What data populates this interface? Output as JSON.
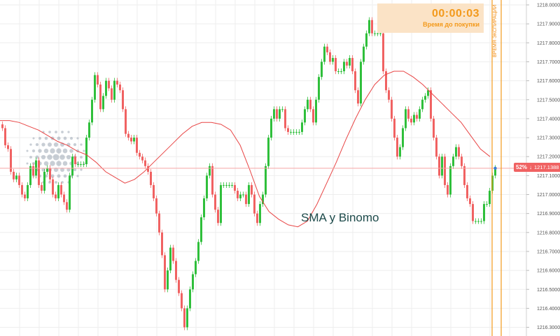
{
  "timer": {
    "value": "00:00:03",
    "label": "Время до покупки"
  },
  "expiry_label": "ВРЕМЯ ЭКСПИРАЦИИ",
  "price_badge": {
    "percent": "52%",
    "arrow": "↓",
    "price": "1217.1388"
  },
  "caption": "SMA у Binomo",
  "colors": {
    "up": "#2fbf3b",
    "down": "#f06262",
    "sma": "#e84545",
    "price_line": "#f5a5a5",
    "expiry": "#f39a1c",
    "grid": "#eeeeee"
  },
  "chart_data": {
    "type": "candlestick",
    "ylim": [
      1216.25,
      1218.02
    ],
    "y_ticks": [
      "1218.00000",
      "1217.90000",
      "1217.80000",
      "1217.70000",
      "1217.60000",
      "1217.50000",
      "1217.40000",
      "1217.30000",
      "1217.20000",
      "1217.10000",
      "1217.00000",
      "1216.90000",
      "1216.80000",
      "1216.70000",
      "1216.60000",
      "1216.50000",
      "1216.40000",
      "1216.30000"
    ],
    "current_price": 1217.1388,
    "sma_label": "SMA",
    "close": [
      1217.35,
      1217.26,
      1217.24,
      1217.12,
      1217.08,
      1217.1,
      1217.05,
      1217.0,
      1216.98,
      1217.05,
      1217.15,
      1217.1,
      1217.18,
      1217.05,
      1217.02,
      1217.12,
      1217.14,
      1217.08,
      1217.0,
      1216.98,
      1217.05,
      1217.0,
      1216.96,
      1216.92,
      1217.1,
      1217.2,
      1217.16,
      1217.16,
      1217.16,
      1217.16,
      1217.3,
      1217.38,
      1217.5,
      1217.63,
      1217.58,
      1217.45,
      1217.52,
      1217.6,
      1217.56,
      1217.5,
      1217.6,
      1217.58,
      1217.55,
      1217.45,
      1217.32,
      1217.3,
      1217.28,
      1217.3,
      1217.22,
      1217.2,
      1217.18,
      1217.15,
      1217.12,
      1217.05,
      1216.98,
      1216.9,
      1216.8,
      1216.68,
      1216.5,
      1216.6,
      1216.72,
      1216.65,
      1216.55,
      1216.48,
      1216.4,
      1216.3,
      1216.4,
      1216.5,
      1216.58,
      1216.65,
      1216.75,
      1216.88,
      1216.98,
      1217.1,
      1217.15,
      1217.0,
      1216.92,
      1216.85,
      1217.05,
      1217.05,
      1217.05,
      1217.05,
      1217.05,
      1217.02,
      1216.98,
      1217.0,
      1217.0,
      1216.95,
      1217.05,
      1217.0,
      1216.9,
      1216.85,
      1216.95,
      1217.0,
      1217.15,
      1217.3,
      1217.4,
      1217.45,
      1217.4,
      1217.45,
      1217.45,
      1217.35,
      1217.33,
      1217.33,
      1217.33,
      1217.33,
      1217.33,
      1217.38,
      1217.45,
      1217.5,
      1217.45,
      1217.38,
      1217.5,
      1217.62,
      1217.7,
      1217.78,
      1217.75,
      1217.7,
      1217.72,
      1217.65,
      1217.65,
      1217.65,
      1217.7,
      1217.68,
      1217.72,
      1217.65,
      1217.55,
      1217.48,
      1217.7,
      1217.78,
      1217.85,
      1217.92,
      1217.85,
      1217.85,
      1217.85,
      1217.85,
      1217.65,
      1217.55,
      1217.5,
      1217.4,
      1217.3,
      1217.2,
      1217.25,
      1217.35,
      1217.45,
      1217.4,
      1217.38,
      1217.42,
      1217.4,
      1217.45,
      1217.5,
      1217.52,
      1217.55,
      1217.4,
      1217.3,
      1217.2,
      1217.1,
      1217.2,
      1217.05,
      1217.0,
      1217.15,
      1217.2,
      1217.25,
      1217.2,
      1217.15,
      1217.05,
      1216.98,
      1216.95,
      1216.86,
      1216.86,
      1216.86,
      1216.86,
      1216.95,
      1216.95,
      1217.02,
      1217.1,
      1217.14
    ],
    "sma": [
      1217.39,
      1217.39,
      1217.38,
      1217.36,
      1217.34,
      1217.31,
      1217.28,
      1217.26,
      1217.23,
      1217.21,
      1217.17,
      1217.12,
      1217.09,
      1217.06,
      1217.08,
      1217.12,
      1217.17,
      1217.22,
      1217.27,
      1217.32,
      1217.36,
      1217.38,
      1217.38,
      1217.37,
      1217.34,
      1217.26,
      1217.13,
      1216.99,
      1216.91,
      1216.87,
      1216.84,
      1216.83,
      1216.86,
      1216.95,
      1217.06,
      1217.17,
      1217.29,
      1217.4,
      1217.5,
      1217.58,
      1217.63,
      1217.65,
      1217.65,
      1217.62,
      1217.58,
      1217.53,
      1217.48,
      1217.43,
      1217.38,
      1217.31,
      1217.24,
      1217.2
    ]
  }
}
